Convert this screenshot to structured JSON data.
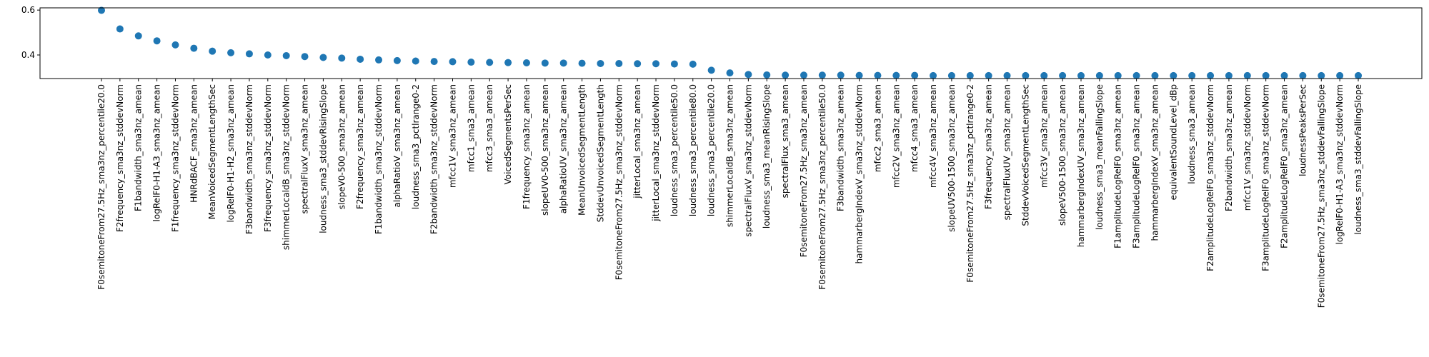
{
  "chart_data": {
    "type": "scatter",
    "title": "",
    "xlabel": "",
    "ylabel": "",
    "grid": false,
    "ylim": [
      0.295,
      0.61
    ],
    "yticks": [
      0.4,
      0.6
    ],
    "ytick_labels": [
      "0.4",
      "0.6"
    ],
    "point_color": "#1f77b4",
    "categories": [
      "F0semitoneFrom27.5Hz_sma3nz_percentile20.0",
      "F2frequency_sma3nz_stddevNorm",
      "F1bandwidth_sma3nz_amean",
      "logRelF0-H1-A3_sma3nz_amean",
      "F1frequency_sma3nz_stddevNorm",
      "HNRdBACF_sma3nz_amean",
      "MeanVoicedSegmentLengthSec",
      "logRelF0-H1-H2_sma3nz_amean",
      "F3bandwidth_sma3nz_stddevNorm",
      "F3frequency_sma3nz_stddevNorm",
      "shimmerLocaldB_sma3nz_stddevNorm",
      "spectralFluxV_sma3nz_amean",
      "loudness_sma3_stddevRisingSlope",
      "slopeV0-500_sma3nz_amean",
      "F2frequency_sma3nz_amean",
      "F1bandwidth_sma3nz_stddevNorm",
      "alphaRatioV_sma3nz_amean",
      "loudness_sma3_pctlrange0-2",
      "F2bandwidth_sma3nz_stddevNorm",
      "mfcc1V_sma3nz_amean",
      "mfcc1_sma3_amean",
      "mfcc3_sma3_amean",
      "VoicedSegmentsPerSec",
      "F1frequency_sma3nz_amean",
      "slopeUV0-500_sma3nz_amean",
      "alphaRatioUV_sma3nz_amean",
      "MeanUnvoicedSegmentLength",
      "StddevUnvoicedSegmentLength",
      "F0semitoneFrom27.5Hz_sma3nz_stddevNorm",
      "jitterLocal_sma3nz_amean",
      "jitterLocal_sma3nz_stddevNorm",
      "loudness_sma3_percentile50.0",
      "loudness_sma3_percentile80.0",
      "loudness_sma3_percentile20.0",
      "shimmerLocaldB_sma3nz_amean",
      "spectralFluxV_sma3nz_stddevNorm",
      "loudness_sma3_meanRisingSlope",
      "spectralFlux_sma3_amean",
      "F0semitoneFrom27.5Hz_sma3nz_amean",
      "F0semitoneFrom27.5Hz_sma3nz_percentile50.0",
      "F3bandwidth_sma3nz_amean",
      "hammarbergIndexV_sma3nz_stddevNorm",
      "mfcc2_sma3_amean",
      "mfcc2V_sma3nz_amean",
      "mfcc4_sma3_amean",
      "mfcc4V_sma3nz_amean",
      "slopeUV500-1500_sma3nz_amean",
      "F0semitoneFrom27.5Hz_sma3nz_pctlrange0-2",
      "F3frequency_sma3nz_amean",
      "spectralFluxUV_sma3nz_amean",
      "StddevVoicedSegmentLengthSec",
      "mfcc3V_sma3nz_amean",
      "slopeV500-1500_sma3nz_amean",
      "hammarbergIndexUV_sma3nz_amean",
      "loudness_sma3_meanFallingSlope",
      "F1amplitudeLogRelF0_sma3nz_amean",
      "F3amplitudeLogRelF0_sma3nz_amean",
      "hammarbergIndexV_sma3nz_amean",
      "equivalentSoundLevel_dBp",
      "loudness_sma3_amean",
      "F2amplitudeLogRelF0_sma3nz_stddevNorm",
      "F2bandwidth_sma3nz_amean",
      "mfcc1V_sma3nz_stddevNorm",
      "F3amplitudeLogRelF0_sma3nz_stddevNorm",
      "F2amplitudeLogRelF0_sma3nz_amean",
      "loudnessPeaksPerSec",
      "F0semitoneFrom27.5Hz_sma3nz_stddevFallingSlope",
      "logRelF0-H1-A3_sma3nz_stddevNorm",
      "loudness_sma3_stddevFallingSlope"
    ],
    "values": [
      0.599,
      0.516,
      0.485,
      0.463,
      0.445,
      0.43,
      0.417,
      0.41,
      0.405,
      0.4,
      0.397,
      0.393,
      0.389,
      0.386,
      0.381,
      0.378,
      0.375,
      0.373,
      0.371,
      0.37,
      0.368,
      0.367,
      0.366,
      0.365,
      0.364,
      0.364,
      0.363,
      0.362,
      0.362,
      0.361,
      0.361,
      0.36,
      0.359,
      0.332,
      0.32,
      0.313,
      0.311,
      0.31,
      0.31,
      0.31,
      0.31,
      0.309,
      0.309,
      0.309,
      0.309,
      0.308,
      0.308,
      0.308,
      0.308,
      0.308,
      0.308,
      0.308,
      0.308,
      0.308,
      0.308,
      0.308,
      0.308,
      0.308,
      0.308,
      0.308,
      0.308,
      0.308,
      0.308,
      0.308,
      0.308,
      0.308,
      0.308,
      0.308,
      0.308
    ]
  }
}
